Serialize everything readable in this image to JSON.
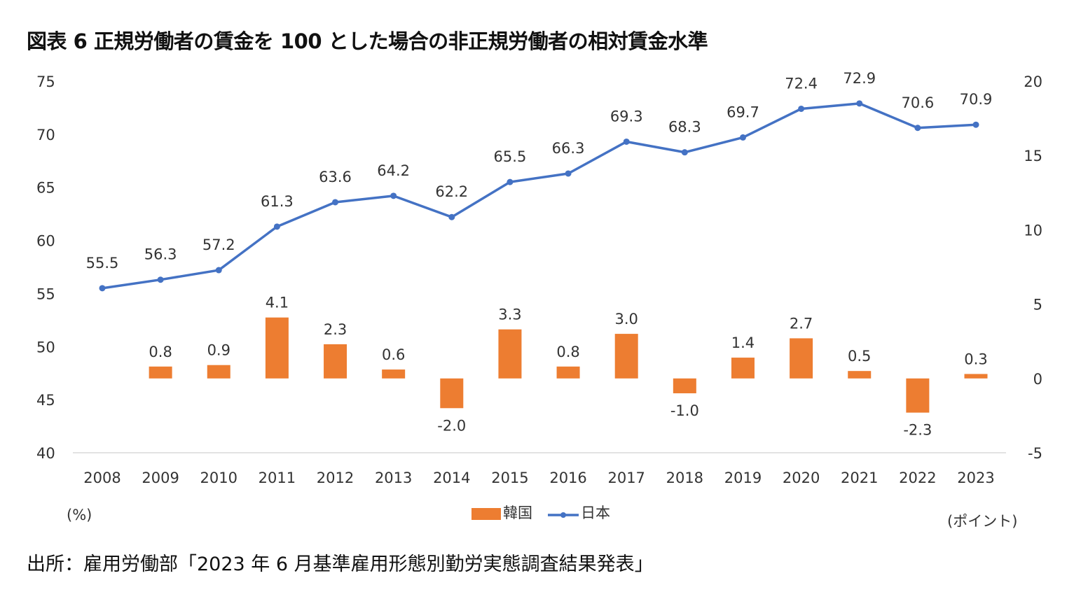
{
  "title": "図表 6 正規労働者の賃金を 100 とした場合の非正規労働者の相対賃金水準",
  "source": "出所：雇用労働部「2023 年 6 月基準雇用形態別勤労実態調査結果発表」",
  "chart_data": {
    "type": "bar+line",
    "categories": [
      "2008",
      "2009",
      "2010",
      "2011",
      "2012",
      "2013",
      "2014",
      "2015",
      "2016",
      "2017",
      "2018",
      "2019",
      "2020",
      "2021",
      "2022",
      "2023"
    ],
    "series": [
      {
        "name": "韓国",
        "type": "bar",
        "axis": "right",
        "color": "#ED7D31",
        "values": [
          null,
          0.8,
          0.9,
          4.1,
          2.3,
          0.6,
          -2.0,
          3.3,
          0.8,
          3.0,
          -1.0,
          1.4,
          2.7,
          0.5,
          -2.3,
          0.3
        ]
      },
      {
        "name": "日本",
        "type": "line",
        "axis": "left",
        "color": "#4472C4",
        "values": [
          55.5,
          56.3,
          57.2,
          61.3,
          63.6,
          64.2,
          62.2,
          65.5,
          66.3,
          69.3,
          68.3,
          69.7,
          72.4,
          72.9,
          70.6,
          70.9
        ]
      }
    ],
    "left_axis": {
      "label": "(%)",
      "ylim": [
        40,
        75
      ],
      "ticks": [
        75,
        70,
        65,
        60,
        55,
        50,
        45,
        40
      ]
    },
    "right_axis": {
      "label": "(ポイント)",
      "ylim": [
        -5,
        20
      ],
      "ticks": [
        20,
        15,
        10,
        5,
        0,
        -5
      ]
    },
    "grid": false,
    "legend": "bottom"
  }
}
